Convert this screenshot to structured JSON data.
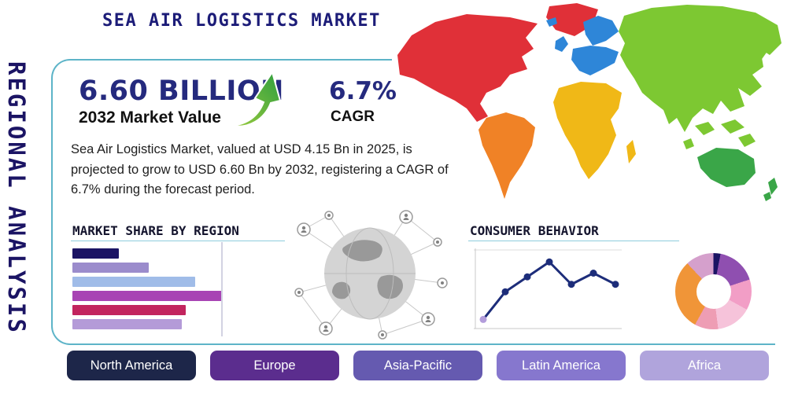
{
  "side_label": "REGIONAL ANALYSIS",
  "header": {
    "title": "SEA AIR LOGISTICS MARKET"
  },
  "highlight": {
    "market_value": "6.60 BILLION",
    "market_value_caption": "2032 Market Value",
    "cagr_value": "6.7%",
    "cagr_label": "CAGR"
  },
  "description": "Sea Air Logistics Market, valued at USD 4.15 Bn in 2025, is projected to grow to USD 6.60 Bn by 2032, registering a CAGR of 6.7% during the forecast period.",
  "sections": {
    "market_share_title": "MARKET SHARE BY REGION",
    "consumer_behavior_title": "CONSUMER BEHAVIOR"
  },
  "regions": [
    {
      "label": "North America",
      "color": "#1d2649"
    },
    {
      "label": "Europe",
      "color": "#5b2d8e"
    },
    {
      "label": "Asia-Pacific",
      "color": "#655ab0"
    },
    {
      "label": "Latin America",
      "color": "#8677ce"
    },
    {
      "label": "Africa",
      "color": "#b0a4dc"
    }
  ],
  "colors": {
    "accent_teal": "#5db4c8",
    "navy": "#1b1464",
    "arrow_green_light": "#9ccc3f",
    "arrow_green_dark": "#2e9e3e"
  },
  "map": {
    "continent_colors": {
      "north_america": "#e03038",
      "greenland": "#e03038",
      "south_america": "#f08226",
      "europe": "#2e86d8",
      "africa": "#f0b817",
      "asia": "#7dc832",
      "australia": "#3aa648"
    }
  },
  "chart_data": [
    {
      "id": "market-share-bars",
      "type": "bar",
      "orientation": "horizontal",
      "title": "MARKET SHARE BY REGION",
      "values": [
        31,
        51,
        82,
        100,
        76,
        73
      ],
      "max": 100,
      "colors": [
        "#1b1464",
        "#9b8ccc",
        "#a0bce8",
        "#a844b4",
        "#c2245e",
        "#b49bd8"
      ],
      "axis_tick_labels": "none shown",
      "grid": false
    },
    {
      "id": "consumer-behavior-line",
      "type": "line",
      "title": "CONSUMER BEHAVIOR",
      "values": [
        8,
        45,
        65,
        85,
        55,
        70,
        55
      ],
      "ylim": [
        0,
        100
      ],
      "line_color": "#1d2d7a",
      "marker_color": "#1d2d7a",
      "first_marker_color": "#b39ddb",
      "axis_tick_labels": "none shown",
      "grid": false
    },
    {
      "id": "region-share-donut",
      "type": "pie",
      "donut": true,
      "segments": [
        {
          "color": "#1b1464",
          "value": 3
        },
        {
          "color": "#8f4fb0",
          "value": 17
        },
        {
          "color": "#f29ec6",
          "value": 13
        },
        {
          "color": "#f6c3da",
          "value": 15
        },
        {
          "color": "#ee9db4",
          "value": 10
        },
        {
          "color": "#f09538",
          "value": 30
        },
        {
          "color": "#d5a0cc",
          "value": 12
        }
      ]
    }
  ]
}
